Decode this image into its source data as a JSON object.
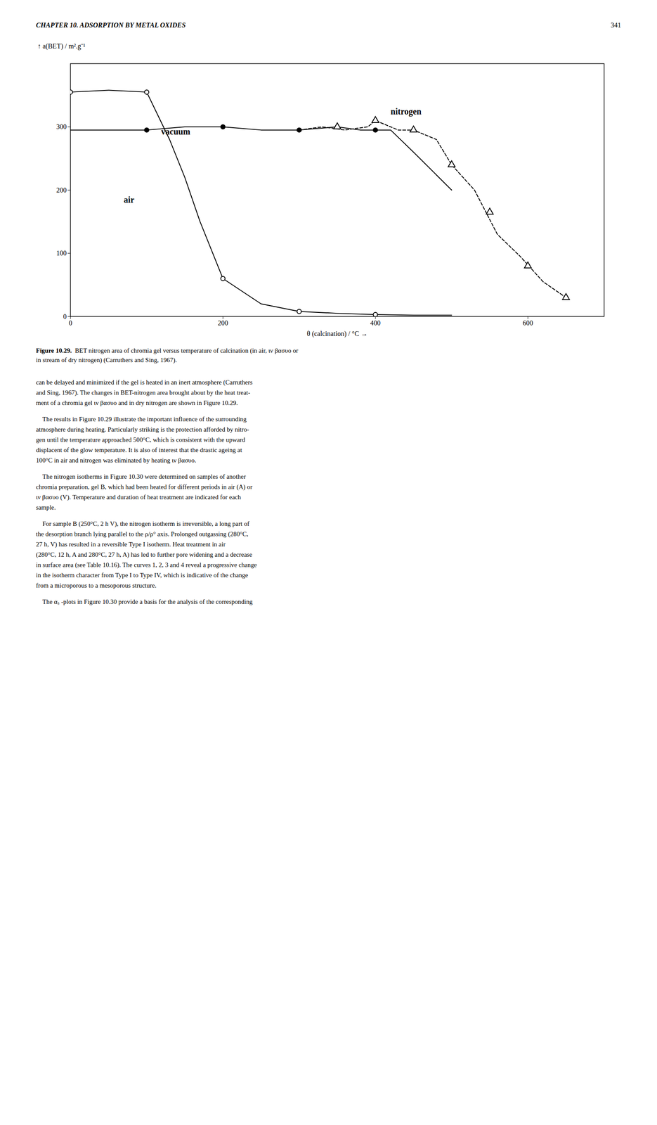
{
  "header": "CHAPTER 10. ADSORPTION BY METAL OXIDES",
  "page_number": "341",
  "caption": {
    "label": "Figure 10.29.",
    "text": "  BET nitrogen area of chromia gel versus temperature of calcination (in air, ιν βασυο or\nin stream of dry nitrogen) (Carruthers and Sing, 1967)."
  },
  "paragraphs": [
    "can be delayed and minimized if the gel is heated in an inert atmosphere (Carruthers\nand Sing, 1967). The changes in BET-nitrogen area brought about by the heat treat-\nment of a chromia gel ιν βασυο and in dry nitrogen are shown in Figure 10.29.",
    "    The results in Figure 10.29 illustrate the important influence of the surrounding\natmosphere during heating. Particularly striking is the protection afforded by nitro-\ngen until the temperature approached 500°C, which is consistent with the upward\ndisplacent of the glow temperature. It is also of interest that the drastic ageing at\n100°C in air and nitrogen was eliminated by heating ιν βασυο.",
    "    The nitrogen isotherms in Figure 10.30 were determined on samples of another\nchromia preparation, gel B, which had been heated for different periods in air (A) or\nιν βασυο (V). Temperature and duration of heat treatment are indicated for each\nsample.",
    "    For sample B (250°C, 2 h V), the nitrogen isotherm is irreversible, a long part of\nthe desorption branch lying parallel to the ρ/ρ° axis. Prolonged outgassing (280°C,\n27 h, V) has resulted in a reversible Type I isotherm. Heat treatment in air\n(280°C, 12 h, A and 280°C, 27 h, A) has led to further pore widening and a decrease\nin surface area (see Table 10.16). The curves 1, 2, 3 and 4 reveal a progressive change\nin the isotherm character from Type I to Type IV, which is indicative of the change\nfrom a microporous to a mesoporous structure.",
    "    The αₛ -plots in Figure 10.30 provide a basis for the analysis of the corresponding"
  ],
  "chart_data": {
    "type": "line",
    "x_label": "θ (calcination) / °C",
    "y_label": "a(BET) / m².g⁻¹",
    "xlim": [
      0,
      700
    ],
    "ylim": [
      0,
      400
    ],
    "xticks": [
      0,
      200,
      400,
      600
    ],
    "yticks": [
      0,
      100,
      200,
      300
    ],
    "series": [
      {
        "name": "air",
        "line_style": "solid",
        "marker": "open_circle",
        "x": [
          0,
          50,
          100,
          130,
          150,
          170,
          200,
          250,
          300,
          350,
          400,
          450,
          500
        ],
        "values": [
          355,
          358,
          355,
          280,
          220,
          150,
          60,
          20,
          8,
          5,
          3,
          2,
          2
        ],
        "marker_x": [
          0,
          100,
          200,
          300,
          400
        ],
        "marker_values": [
          355,
          355,
          60,
          8,
          3
        ]
      },
      {
        "name": "vacuum",
        "line_style": "solid",
        "marker": "filled_circle",
        "x": [
          0,
          50,
          100,
          150,
          200,
          250,
          300,
          350,
          380,
          400,
          420,
          450,
          500
        ],
        "values": [
          295,
          295,
          295,
          300,
          300,
          295,
          295,
          300,
          295,
          295,
          295,
          260,
          200
        ],
        "marker_x": [
          100,
          200,
          300,
          400
        ],
        "marker_values": [
          295,
          300,
          295,
          295
        ]
      },
      {
        "name": "nitrogen",
        "line_style": "dashed",
        "marker": "open_triangle",
        "x": [
          300,
          330,
          360,
          390,
          400,
          430,
          450,
          480,
          500,
          530,
          560,
          590,
          620,
          650
        ],
        "values": [
          295,
          300,
          295,
          300,
          310,
          295,
          295,
          280,
          240,
          200,
          130,
          95,
          55,
          30
        ],
        "marker_x": [
          350,
          400,
          450,
          500,
          550,
          600,
          650
        ],
        "marker_values": [
          300,
          310,
          295,
          240,
          165,
          80,
          30
        ]
      }
    ]
  }
}
